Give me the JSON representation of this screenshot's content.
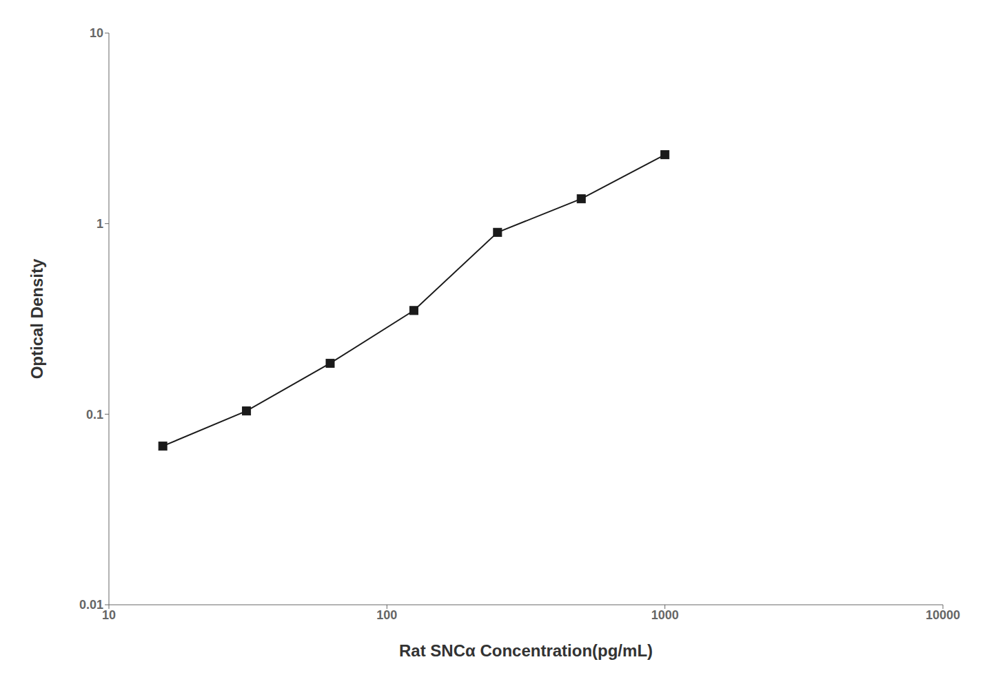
{
  "chart_data": {
    "type": "line",
    "x": [
      15.625,
      31.25,
      62.5,
      125,
      250,
      500,
      1000
    ],
    "values": [
      0.068,
      0.104,
      0.185,
      0.35,
      0.9,
      1.35,
      2.3
    ],
    "xlabel": "Rat SNCα Concentration(pg/mL)",
    "ylabel": "Optical Density",
    "xlim": [
      10,
      10000
    ],
    "ylim": [
      0.01,
      10
    ],
    "xticks": [
      10,
      100,
      1000,
      10000
    ],
    "yticks": [
      0.01,
      0.1,
      1,
      10
    ],
    "log": true,
    "color": "#1a1a1a",
    "marker": "square",
    "grid": false
  }
}
